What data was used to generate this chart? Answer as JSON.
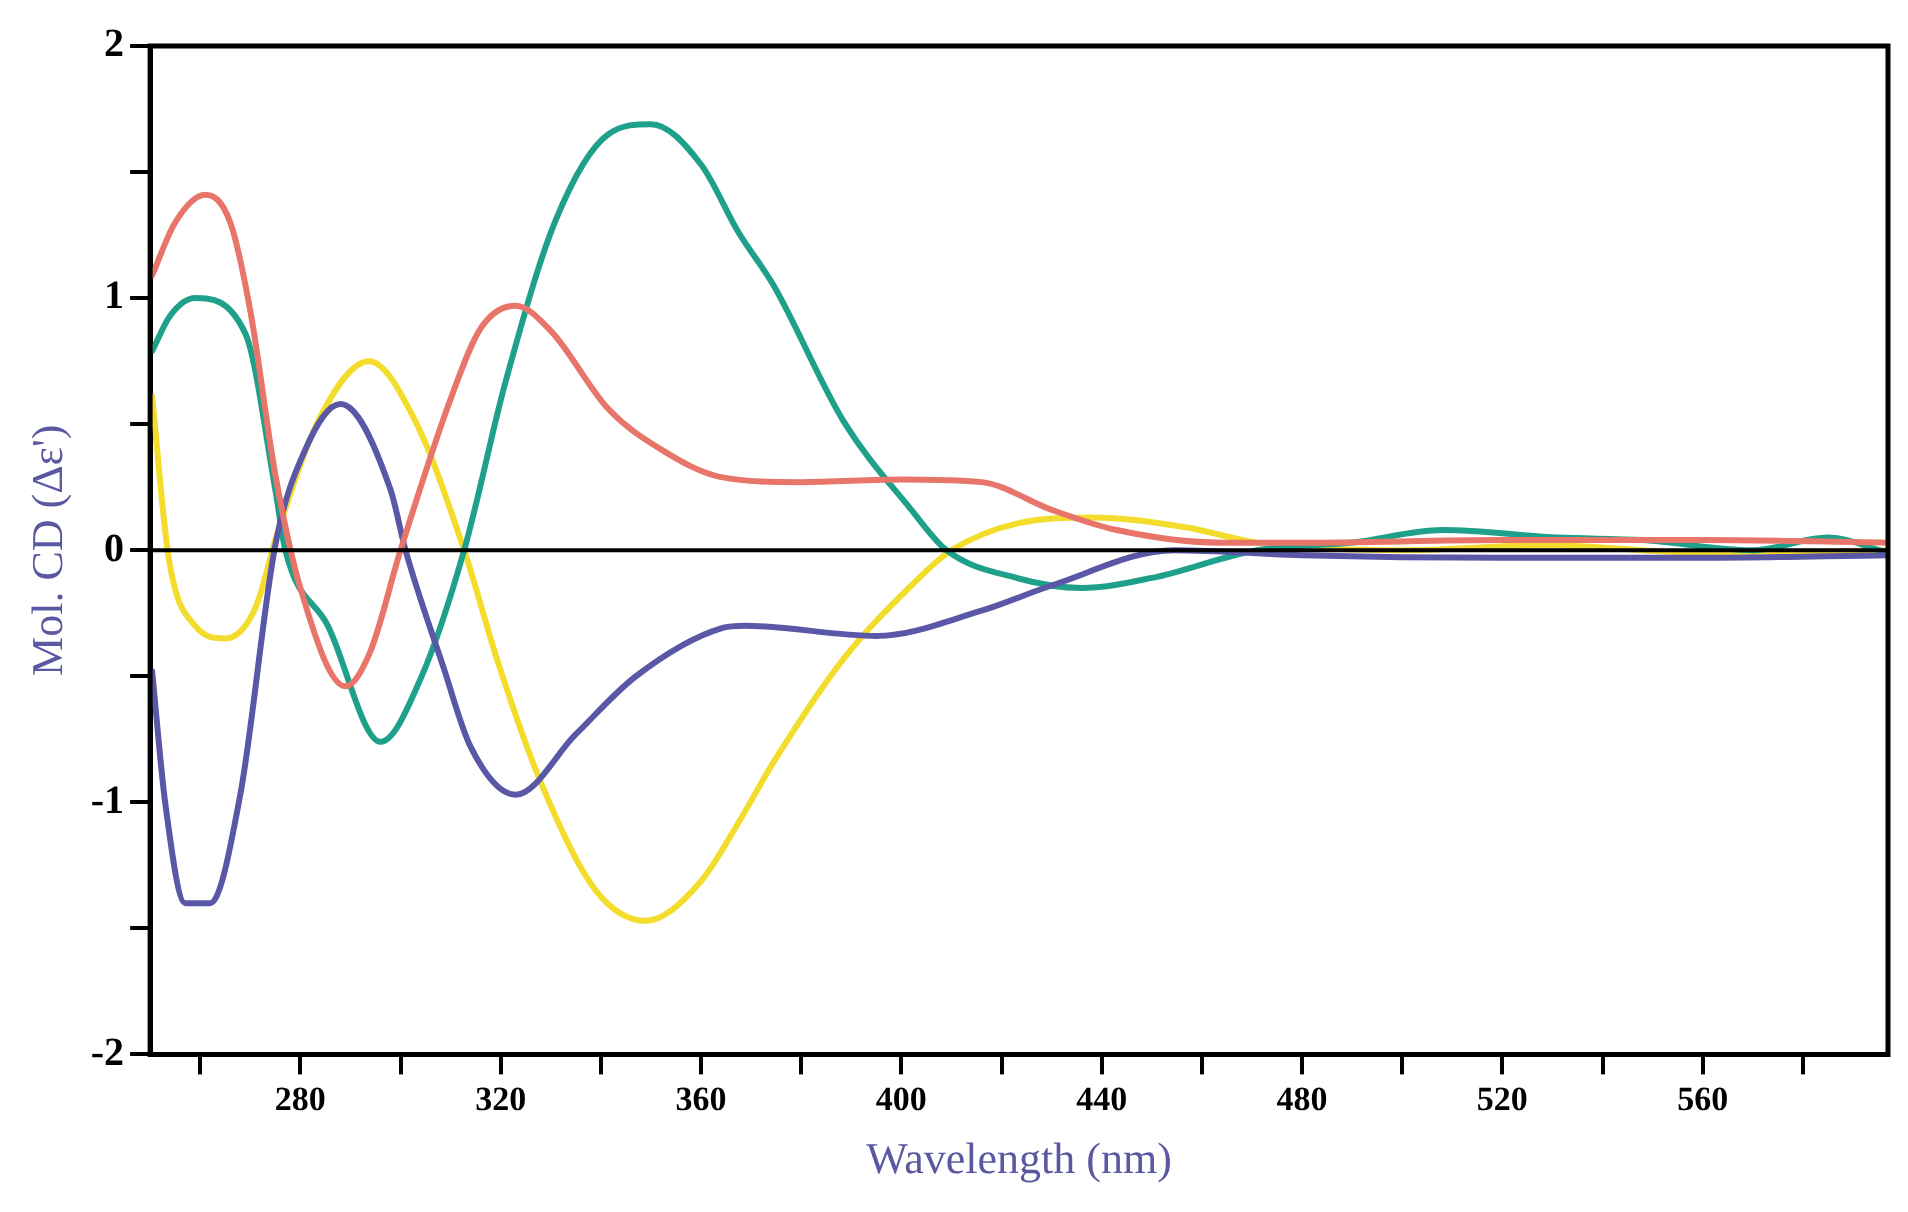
{
  "chart_data": {
    "type": "line",
    "xlabel": "Wavelength (nm)",
    "ylabel": "Mol. CD (Δε')",
    "xlim": [
      250,
      597
    ],
    "ylim": [
      -2,
      2
    ],
    "xticks": [
      {
        "value": 260,
        "label": null
      },
      280,
      {
        "value": 300,
        "label": null
      },
      320,
      {
        "value": 340,
        "label": null
      },
      360,
      {
        "value": 380,
        "label": null
      },
      400,
      {
        "value": 420,
        "label": null
      },
      440,
      {
        "value": 460,
        "label": null
      },
      480,
      {
        "value": 500,
        "label": null
      },
      520,
      {
        "value": 540,
        "label": null
      },
      560,
      {
        "value": 580,
        "label": null
      }
    ],
    "yticks": [
      -2,
      {
        "value": -1.5,
        "label": null
      },
      -1,
      {
        "value": -0.5,
        "label": null
      },
      0,
      {
        "value": 0.5,
        "label": null
      },
      1,
      {
        "value": 1.5,
        "label": null
      },
      2
    ],
    "grid": false,
    "legend": false,
    "marker": "none",
    "line_style": "solid",
    "ref_lines": [
      {
        "axis": "y",
        "value": 0,
        "color": "#000000"
      }
    ],
    "series": [
      {
        "color": "#e8756a",
        "x": [
          250.4,
          255,
          261,
          266,
          270,
          275,
          280,
          289,
          294,
          300,
          310,
          316,
          323,
          330,
          341.5,
          352,
          364,
          380,
          400,
          416,
          430,
          443,
          464,
          480,
          520,
          560,
          597
        ],
        "values": [
          1.09,
          1.3,
          1.41,
          1.3,
          0.95,
          0.3,
          -0.15,
          -0.54,
          -0.4,
          0.0,
          0.6,
          0.88,
          0.97,
          0.87,
          0.56,
          0.4,
          0.29,
          0.27,
          0.28,
          0.27,
          0.16,
          0.08,
          0.03,
          0.03,
          0.04,
          0.04,
          0.03
        ]
      },
      {
        "color": "#5a58a6",
        "x": [
          250.4,
          253,
          257,
          262,
          268,
          275,
          281,
          288,
          298,
          301,
          308.5,
          314,
          323,
          335,
          347,
          364,
          369,
          395,
          416,
          430,
          454.5,
          480,
          520,
          560,
          597
        ],
        "values": [
          -0.48,
          -1.0,
          -1.4,
          -1.4,
          -0.97,
          0.02,
          0.4,
          0.58,
          0.24,
          0.0,
          -0.46,
          -0.78,
          -0.97,
          -0.73,
          -0.5,
          -0.31,
          -0.3,
          -0.34,
          -0.24,
          -0.14,
          0.0,
          -0.02,
          -0.03,
          -0.03,
          -0.02
        ]
      },
      {
        "color": "#1fa08a",
        "x": [
          250.4,
          254,
          259,
          269,
          275,
          277,
          285.5,
          296,
          304,
          312.7,
          321,
          331,
          341.5,
          350,
          360,
          367.5,
          374.5,
          388.5,
          402,
          409,
          423,
          436,
          450,
          471,
          490,
          508,
          531,
          548,
          570,
          585,
          597
        ],
        "values": [
          0.79,
          0.93,
          1.0,
          0.86,
          0.24,
          0.0,
          -0.3,
          -0.76,
          -0.51,
          0.0,
          0.67,
          1.31,
          1.65,
          1.69,
          1.53,
          1.26,
          1.05,
          0.51,
          0.16,
          0.0,
          -0.11,
          -0.15,
          -0.11,
          0.0,
          0.03,
          0.08,
          0.05,
          0.04,
          0.0,
          0.05,
          -0.01
        ]
      },
      {
        "color": "#f4dc2c",
        "x": [
          250.4,
          253.7,
          259,
          265,
          271,
          275.6,
          284,
          293.7,
          303,
          312.7,
          319.7,
          328,
          339,
          349,
          359.7,
          367.5,
          374.5,
          388.5,
          402,
          410,
          427,
          438,
          457,
          471,
          500,
          529,
          560,
          597
        ],
        "values": [
          0.61,
          -0.03,
          -0.3,
          -0.35,
          -0.23,
          0.08,
          0.53,
          0.75,
          0.51,
          0.0,
          -0.46,
          -0.92,
          -1.35,
          -1.47,
          -1.32,
          -1.08,
          -0.84,
          -0.43,
          -0.14,
          0.0,
          0.12,
          0.13,
          0.09,
          0.03,
          0.0,
          0.02,
          -0.01,
          0.0
        ]
      }
    ]
  }
}
